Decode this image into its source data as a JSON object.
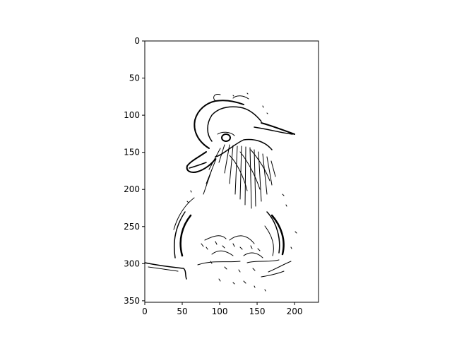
{
  "chart_data": {
    "type": "image",
    "title": "",
    "xlabel": "",
    "ylabel": "",
    "image_width": 232,
    "image_height": 352,
    "xlim": [
      0,
      232
    ],
    "ylim": [
      352,
      0
    ],
    "y_inverted": true,
    "x_ticks": [
      0,
      50,
      100,
      150,
      200
    ],
    "y_ticks": [
      0,
      50,
      100,
      150,
      200,
      250,
      300,
      350
    ],
    "x_tick_labels": [
      "0",
      "50",
      "100",
      "150",
      "200"
    ],
    "y_tick_labels": [
      "0",
      "50",
      "100",
      "150",
      "200",
      "250",
      "300",
      "350"
    ],
    "colormap": "gray (binary)",
    "grid": false,
    "subject": "edge-detected line drawing of a mandarin duck"
  },
  "colors": {
    "foreground": "#000000",
    "background": "#ffffff"
  }
}
